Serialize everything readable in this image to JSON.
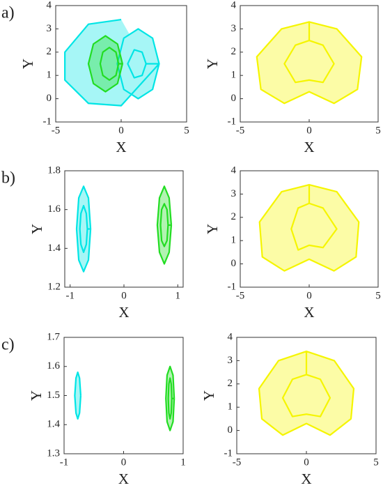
{
  "chart_data": [
    {
      "type": "line",
      "label": "a)",
      "x_label": "X",
      "y_label": "Y",
      "xlim": [
        -5,
        5
      ],
      "ylim": [
        -1,
        4
      ],
      "xticks": [
        -5,
        0,
        5
      ],
      "yticks": [
        -1,
        0,
        1,
        2,
        3,
        4
      ],
      "series": [
        {
          "color": "#00e5e5",
          "x": [
            0,
            -2.5,
            -4.3,
            -4.3,
            -2.5,
            0,
            2.9,
            2.4,
            1.3,
            0.2,
            -0.3,
            0.2,
            1.3,
            2.4,
            2.9,
            1.9,
            1.6,
            1.0,
            0.5,
            1.0,
            1.6,
            1.9
          ],
          "values": [
            3.4,
            3.2,
            2,
            0.8,
            -0.2,
            -0.3,
            1.5,
            2.6,
            3.0,
            2.6,
            1.5,
            0.4,
            0,
            0.4,
            1.5,
            1.5,
            2.0,
            2.1,
            1.5,
            0.9,
            1.0,
            1.5
          ]
        },
        {
          "color": "#22dd22",
          "x": [
            0.1,
            -0.28,
            -1.2,
            -2.12,
            -2.5,
            -2.12,
            -1.2,
            -0.28,
            0.1,
            -0.2,
            -0.4,
            -0.9,
            -1.4,
            -1.6,
            -1.4,
            -0.9,
            -0.4,
            -0.2
          ],
          "values": [
            1.5,
            2.35,
            2.7,
            2.35,
            1.5,
            0.65,
            0.3,
            0.65,
            1.5,
            1.5,
            2.0,
            2.2,
            2.0,
            1.5,
            1.0,
            0.8,
            1.0,
            1.5
          ]
        }
      ]
    },
    {
      "type": "line",
      "x_label": "X",
      "y_label": "Y",
      "xlim": [
        -5,
        5
      ],
      "ylim": [
        -1,
        4
      ],
      "xticks": [
        -5,
        0,
        5
      ],
      "yticks": [
        -1,
        0,
        1,
        2,
        3,
        4
      ],
      "series": [
        {
          "color": "#f5f500",
          "x": [
            0,
            -2,
            -3.8,
            -3.5,
            -1.8,
            0,
            1.8,
            3.5,
            3.8,
            2,
            0,
            0,
            -1,
            -1.8,
            -1,
            0,
            1,
            1.8,
            1,
            0
          ],
          "values": [
            3.3,
            3,
            1.8,
            0.4,
            -0.2,
            0.3,
            -0.2,
            0.4,
            1.8,
            3,
            3.3,
            2.5,
            2.3,
            1.5,
            0.7,
            0.8,
            0.7,
            1.5,
            2.3,
            2.5
          ]
        }
      ]
    },
    {
      "type": "line",
      "label": "b)",
      "x_label": "X",
      "y_label": "Y",
      "xlim": [
        -1.1,
        1.1
      ],
      "ylim": [
        1.2,
        1.8
      ],
      "xticks": [
        -1,
        0,
        1
      ],
      "yticks": [
        1.2,
        1.4,
        1.6,
        1.8
      ],
      "series": [
        {
          "color": "#00e5e5",
          "x": [
            -0.62,
            -0.66,
            -0.75,
            -0.84,
            -0.88,
            -0.84,
            -0.75,
            -0.66,
            -0.62,
            -0.68,
            -0.7,
            -0.75,
            -0.8,
            -0.82,
            -0.8,
            -0.75,
            -0.7,
            -0.68
          ],
          "values": [
            1.5,
            1.66,
            1.72,
            1.66,
            1.5,
            1.34,
            1.28,
            1.34,
            1.5,
            1.5,
            1.58,
            1.62,
            1.58,
            1.5,
            1.42,
            1.38,
            1.42,
            1.5
          ]
        },
        {
          "color": "#22dd22",
          "x": [
            0.88,
            0.84,
            0.75,
            0.66,
            0.62,
            0.66,
            0.75,
            0.84,
            0.88,
            0.82,
            0.8,
            0.75,
            0.7,
            0.68,
            0.7,
            0.75,
            0.8,
            0.82
          ],
          "values": [
            1.52,
            1.66,
            1.72,
            1.66,
            1.52,
            1.38,
            1.32,
            1.38,
            1.52,
            1.52,
            1.6,
            1.63,
            1.6,
            1.52,
            1.44,
            1.41,
            1.44,
            1.52
          ]
        }
      ]
    },
    {
      "type": "line",
      "x_label": "X",
      "y_label": "Y",
      "xlim": [
        -5,
        5
      ],
      "ylim": [
        -1,
        4
      ],
      "xticks": [
        -5,
        0,
        5
      ],
      "yticks": [
        -1,
        0,
        1,
        2,
        3,
        4
      ],
      "series": [
        {
          "color": "#f5f500",
          "x": [
            0,
            -2,
            -3.6,
            -3.4,
            -1.8,
            0,
            1.8,
            3.4,
            3.6,
            2,
            0,
            0,
            -0.8,
            -1.3,
            -0.8,
            0,
            1,
            2,
            1,
            0
          ],
          "values": [
            3.4,
            3.1,
            1.8,
            0.3,
            -0.3,
            0.2,
            -0.3,
            0.3,
            1.8,
            3.1,
            3.4,
            2.6,
            2.4,
            1.5,
            0.6,
            0.8,
            0.7,
            1.5,
            2.4,
            2.6
          ]
        }
      ]
    },
    {
      "type": "line",
      "label": "c)",
      "x_label": "X",
      "y_label": "Y",
      "xlim": [
        -1,
        1
      ],
      "ylim": [
        1.3,
        1.7
      ],
      "xticks": [
        -1,
        0,
        1
      ],
      "yticks": [
        1.3,
        1.4,
        1.5,
        1.6,
        1.7
      ],
      "series": [
        {
          "color": "#00e5e5",
          "x": [
            -0.72,
            -0.74,
            -0.77,
            -0.8,
            -0.82,
            -0.8,
            -0.77,
            -0.74,
            -0.72
          ],
          "values": [
            1.5,
            1.56,
            1.58,
            1.56,
            1.5,
            1.44,
            1.42,
            1.44,
            1.5
          ]
        },
        {
          "color": "#22dd22",
          "x": [
            0.85,
            0.83,
            0.78,
            0.73,
            0.71,
            0.73,
            0.78,
            0.83,
            0.85,
            0.81,
            0.8,
            0.78,
            0.76,
            0.75,
            0.76,
            0.78,
            0.8,
            0.81
          ],
          "values": [
            1.49,
            1.57,
            1.6,
            1.57,
            1.49,
            1.41,
            1.38,
            1.41,
            1.49,
            1.49,
            1.54,
            1.56,
            1.54,
            1.49,
            1.44,
            1.42,
            1.44,
            1.49
          ]
        }
      ]
    },
    {
      "type": "line",
      "x_label": "X",
      "y_label": "Y",
      "xlim": [
        -5,
        5
      ],
      "ylim": [
        -1,
        4
      ],
      "xticks": [
        -5,
        0,
        5
      ],
      "yticks": [
        -1,
        0,
        1,
        2,
        3,
        4
      ],
      "series": [
        {
          "color": "#f5f500",
          "x": [
            0,
            -2,
            -3.4,
            -3.2,
            -1.7,
            0,
            1.7,
            3.2,
            3.4,
            2,
            0,
            0,
            -1,
            -1.7,
            -1,
            0,
            1,
            1.7,
            1,
            0
          ],
          "values": [
            3.4,
            3.0,
            1.8,
            0.5,
            -0.2,
            0.3,
            -0.2,
            0.5,
            1.8,
            3.0,
            3.4,
            2.4,
            2.2,
            1.4,
            0.6,
            0.7,
            0.6,
            1.4,
            2.2,
            2.4
          ]
        }
      ]
    }
  ]
}
